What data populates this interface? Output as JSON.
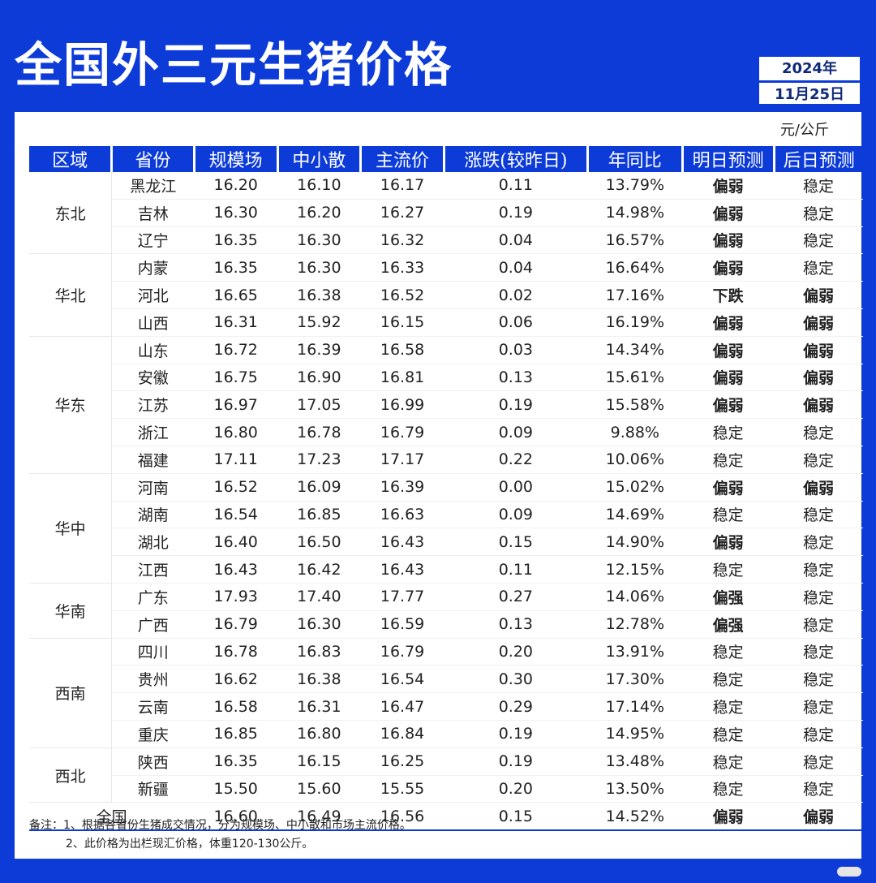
{
  "title": "全国外三元生猪价格",
  "date": {
    "year": "2024年",
    "day": "11月25日"
  },
  "unit": "元/公斤",
  "headers": [
    "区域",
    "省份",
    "规模场",
    "中小散",
    "主流价",
    "涨跌(较昨日)",
    "年同比",
    "明日预测",
    "后日预测"
  ],
  "regions": [
    {
      "name": "东北",
      "rows": [
        [
          "黑龙江",
          "16.20",
          "16.10",
          "16.17",
          "0.11",
          "13.79%",
          "偏弱",
          "稳定"
        ],
        [
          "吉林",
          "16.30",
          "16.20",
          "16.27",
          "0.19",
          "14.98%",
          "偏弱",
          "稳定"
        ],
        [
          "辽宁",
          "16.35",
          "16.30",
          "16.32",
          "0.04",
          "16.57%",
          "偏弱",
          "稳定"
        ]
      ]
    },
    {
      "name": "华北",
      "rows": [
        [
          "内蒙",
          "16.35",
          "16.30",
          "16.33",
          "0.04",
          "16.64%",
          "偏弱",
          "稳定"
        ],
        [
          "河北",
          "16.65",
          "16.38",
          "16.52",
          "0.02",
          "17.16%",
          "下跌",
          "偏弱"
        ],
        [
          "山西",
          "16.31",
          "15.92",
          "16.15",
          "0.06",
          "16.19%",
          "偏弱",
          "偏弱"
        ]
      ]
    },
    {
      "name": "华东",
      "rows": [
        [
          "山东",
          "16.72",
          "16.39",
          "16.58",
          "0.03",
          "14.34%",
          "偏弱",
          "偏弱"
        ],
        [
          "安徽",
          "16.75",
          "16.90",
          "16.81",
          "0.13",
          "15.61%",
          "偏弱",
          "偏弱"
        ],
        [
          "江苏",
          "16.97",
          "17.05",
          "16.99",
          "0.19",
          "15.58%",
          "偏弱",
          "偏弱"
        ],
        [
          "浙江",
          "16.80",
          "16.78",
          "16.79",
          "0.09",
          "9.88%",
          "稳定",
          "稳定"
        ],
        [
          "福建",
          "17.11",
          "17.23",
          "17.17",
          "0.22",
          "10.06%",
          "稳定",
          "稳定"
        ]
      ]
    },
    {
      "name": "华中",
      "rows": [
        [
          "河南",
          "16.52",
          "16.09",
          "16.39",
          "0.00",
          "15.02%",
          "偏弱",
          "偏弱"
        ],
        [
          "湖南",
          "16.54",
          "16.85",
          "16.63",
          "0.09",
          "14.69%",
          "稳定",
          "稳定"
        ],
        [
          "湖北",
          "16.40",
          "16.50",
          "16.43",
          "0.15",
          "14.90%",
          "偏弱",
          "稳定"
        ],
        [
          "江西",
          "16.43",
          "16.42",
          "16.43",
          "0.11",
          "12.15%",
          "稳定",
          "稳定"
        ]
      ]
    },
    {
      "name": "华南",
      "rows": [
        [
          "广东",
          "17.93",
          "17.40",
          "17.77",
          "0.27",
          "14.06%",
          "偏强",
          "稳定"
        ],
        [
          "广西",
          "16.79",
          "16.30",
          "16.59",
          "0.13",
          "12.78%",
          "偏强",
          "稳定"
        ]
      ]
    },
    {
      "name": "西南",
      "rows": [
        [
          "四川",
          "16.78",
          "16.83",
          "16.79",
          "0.20",
          "13.91%",
          "稳定",
          "稳定"
        ],
        [
          "贵州",
          "16.62",
          "16.38",
          "16.54",
          "0.30",
          "17.30%",
          "稳定",
          "稳定"
        ],
        [
          "云南",
          "16.58",
          "16.31",
          "16.47",
          "0.29",
          "17.14%",
          "稳定",
          "稳定"
        ],
        [
          "重庆",
          "16.85",
          "16.80",
          "16.84",
          "0.19",
          "14.95%",
          "稳定",
          "稳定"
        ]
      ]
    },
    {
      "name": "西北",
      "rows": [
        [
          "陕西",
          "16.35",
          "16.15",
          "16.25",
          "0.19",
          "13.48%",
          "稳定",
          "稳定"
        ],
        [
          "新疆",
          "15.50",
          "15.60",
          "15.55",
          "0.20",
          "13.50%",
          "稳定",
          "稳定"
        ]
      ]
    }
  ],
  "total": [
    "全国",
    "16.60",
    "16.49",
    "16.56",
    "0.15",
    "14.52%",
    "偏弱",
    "偏弱"
  ],
  "notes": [
    "备注：1、根据各省份生猪成交情况，分为规模场、中小散和市场主流价格。",
    "2、此价格为出栏现汇价格，体重120-130公斤。"
  ],
  "colors": {
    "brand_blue": "#0c3bd8",
    "up_red": "#e0244f",
    "weak_green": "#21b164"
  }
}
